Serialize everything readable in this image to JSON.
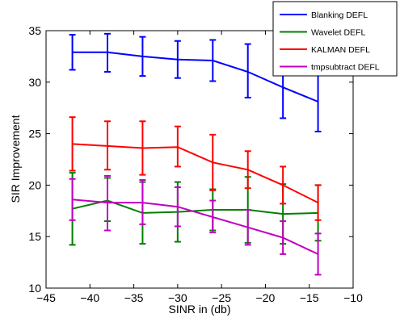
{
  "chart_data": {
    "type": "line",
    "xlabel": "SINR in (db)",
    "ylabel": "SIR Improvement",
    "xlim": [
      -45,
      -10
    ],
    "ylim": [
      10,
      35
    ],
    "xticks": [
      -45,
      -40,
      -35,
      -30,
      -25,
      -20,
      -15,
      -10
    ],
    "yticks": [
      10,
      15,
      20,
      25,
      30,
      35
    ],
    "xtick_labels": [
      "−45",
      "−40",
      "−35",
      "−30",
      "−25",
      "−20",
      "−15",
      "−10"
    ],
    "ytick_labels": [
      "10",
      "15",
      "20",
      "25",
      "30",
      "35"
    ],
    "grid": false,
    "legend_position": "top-right",
    "x": [
      -42,
      -38,
      -34,
      -30,
      -26,
      -22,
      -18,
      -14
    ],
    "series": [
      {
        "name": "Blanking DEFL",
        "color": "#0000ff",
        "values": [
          32.9,
          32.9,
          32.5,
          32.2,
          32.1,
          31.0,
          29.5,
          28.1
        ],
        "err_low": [
          31.2,
          31.0,
          30.6,
          30.4,
          30.1,
          28.5,
          26.5,
          25.2
        ],
        "err_high": [
          34.6,
          34.7,
          34.4,
          34.0,
          34.1,
          33.7,
          32.5,
          31.0
        ]
      },
      {
        "name": "Wavelet DEFL",
        "color": "#008000",
        "values": [
          17.7,
          18.5,
          17.3,
          17.4,
          17.6,
          17.6,
          17.2,
          17.3
        ],
        "err_low": [
          14.2,
          16.5,
          14.3,
          14.5,
          15.6,
          14.4,
          14.3,
          14.6
        ],
        "err_high": [
          21.2,
          20.7,
          20.3,
          20.3,
          19.6,
          20.8,
          20.1,
          20.0
        ]
      },
      {
        "name": "KALMAN DEFL",
        "color": "#ff0000",
        "values": [
          24.0,
          23.8,
          23.6,
          23.7,
          22.2,
          21.5,
          20.0,
          18.3
        ],
        "err_low": [
          21.4,
          21.5,
          21.0,
          21.8,
          19.5,
          19.7,
          18.2,
          16.6
        ],
        "err_high": [
          26.6,
          26.2,
          26.2,
          25.7,
          24.9,
          23.3,
          21.8,
          20.0
        ]
      },
      {
        "name": "tmpsubtract DEFL",
        "color": "#c000c0",
        "values": [
          18.6,
          18.3,
          18.3,
          17.9,
          16.9,
          15.9,
          14.9,
          13.3
        ],
        "err_low": [
          16.6,
          15.6,
          16.2,
          16.0,
          15.4,
          14.2,
          13.3,
          11.3
        ],
        "err_high": [
          20.6,
          20.9,
          20.5,
          19.8,
          18.5,
          17.6,
          16.5,
          15.3
        ]
      }
    ]
  }
}
